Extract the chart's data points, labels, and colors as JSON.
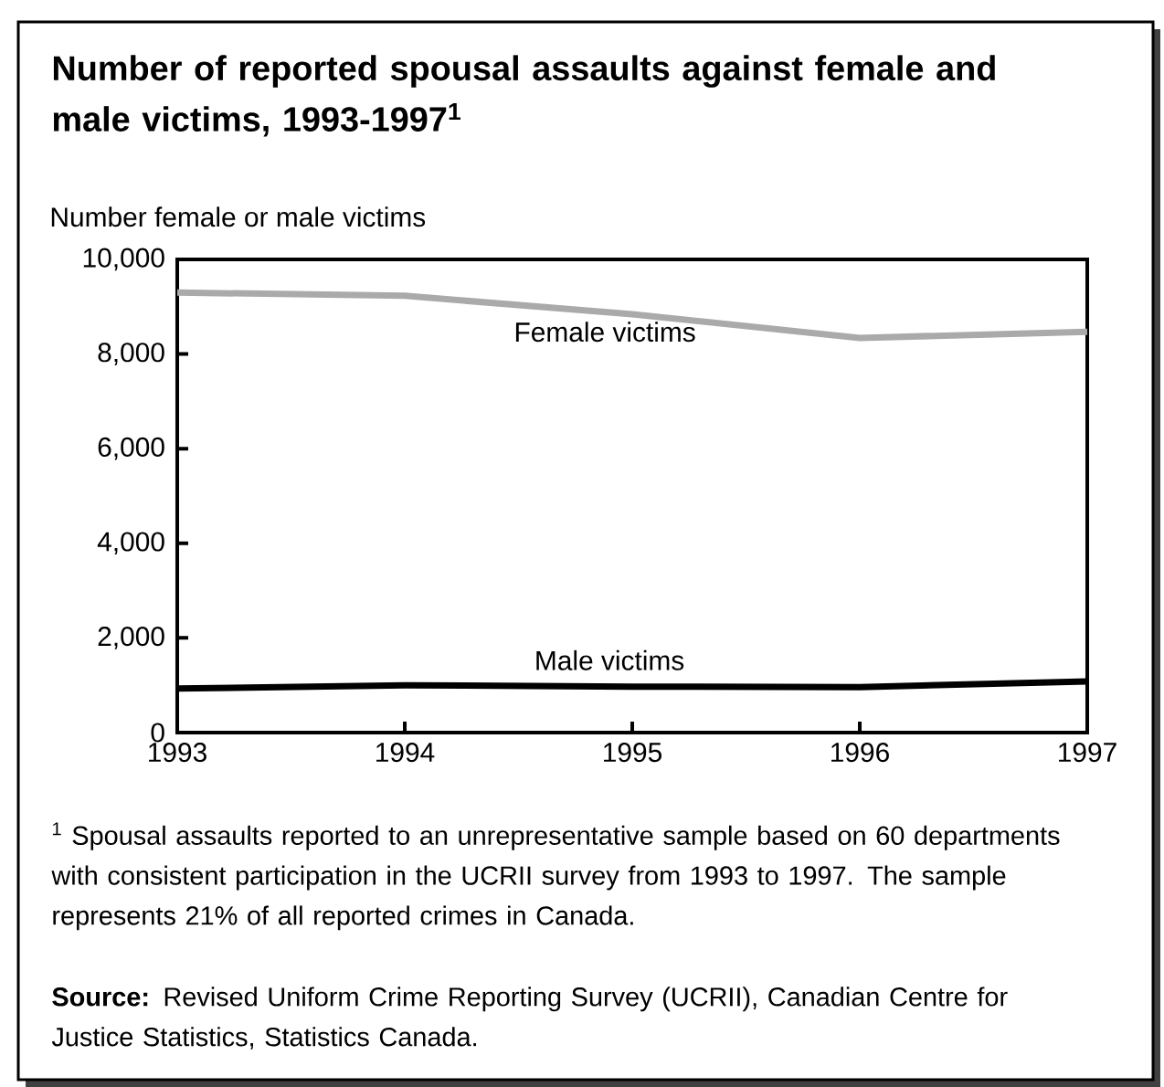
{
  "chart_data": {
    "type": "line",
    "title": "Number of reported spousal assaults against female and male victims, 1993-1997$^{1}$",
    "ylabel": "Number female or male victims",
    "x": [
      1993,
      1994,
      1995,
      1996,
      1997
    ],
    "series": [
      {
        "name": "Female victims",
        "color": "#aaaaaa",
        "values": [
          9300,
          9230,
          8840,
          8340,
          8470
        ]
      },
      {
        "name": "Male victims",
        "color": "#000000",
        "values": [
          930,
          1000,
          970,
          960,
          1080
        ]
      }
    ],
    "xlim": [
      1993,
      1997
    ],
    "xticks": [
      1993,
      1994,
      1995,
      1996,
      1997
    ],
    "ylim": [
      0,
      10000
    ],
    "yticks": [
      0,
      {
        "value": 2000,
        "label": "2,000"
      },
      {
        "value": 4000,
        "label": "4,000"
      },
      {
        "value": 6000,
        "label": "6,000"
      },
      {
        "value": 8000,
        "label": "8,000"
      },
      {
        "value": 10000,
        "label": "10,000"
      }
    ],
    "grid": false,
    "legend": false,
    "marker": "none",
    "line_style": "solid",
    "annotations": [
      "$^{1}$ Spousal assaults reported to an unrepresentative sample based on 60 departments with consistent participation in the UCRII survey from 1993 to 1997. The sample represents 21% of all reported crimes in Canada.",
      "**Source:** Revised Uniform Crime Reporting Survey (UCRII), Canadian Centre for Justice Statistics, Statistics Canada."
    ]
  }
}
